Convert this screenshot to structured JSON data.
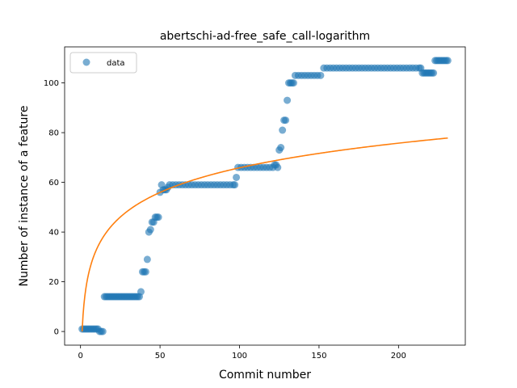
{
  "chart_data": {
    "type": "scatter",
    "title": "abertschi-ad-free_safe_call-logarithm",
    "xlabel": "Commit number",
    "ylabel": "Number of instance of a feature",
    "xlim": [
      -10,
      242
    ],
    "ylim": [
      -5.5,
      114.5
    ],
    "xticks": [
      0,
      50,
      100,
      150,
      200
    ],
    "yticks": [
      0,
      20,
      40,
      60,
      80,
      100
    ],
    "legend": {
      "position": "upper-left",
      "entries": [
        {
          "label": "data",
          "marker": "circle",
          "color": "#1f77b4"
        }
      ]
    },
    "grid": false,
    "series": [
      {
        "name": "data",
        "kind": "scatter",
        "color": "#1f77b4",
        "opacity": 0.6,
        "points": [
          [
            1,
            1
          ],
          [
            2,
            1
          ],
          [
            3,
            1
          ],
          [
            4,
            1
          ],
          [
            5,
            1
          ],
          [
            6,
            1
          ],
          [
            7,
            1
          ],
          [
            8,
            1
          ],
          [
            9,
            1
          ],
          [
            10,
            1
          ],
          [
            11,
            1
          ],
          [
            12,
            0
          ],
          [
            13,
            0
          ],
          [
            14,
            0
          ],
          [
            15,
            14
          ],
          [
            16,
            14
          ],
          [
            17,
            14
          ],
          [
            18,
            14
          ],
          [
            19,
            14
          ],
          [
            20,
            14
          ],
          [
            21,
            14
          ],
          [
            22,
            14
          ],
          [
            23,
            14
          ],
          [
            24,
            14
          ],
          [
            25,
            14
          ],
          [
            26,
            14
          ],
          [
            27,
            14
          ],
          [
            28,
            14
          ],
          [
            29,
            14
          ],
          [
            30,
            14
          ],
          [
            31,
            14
          ],
          [
            32,
            14
          ],
          [
            33,
            14
          ],
          [
            34,
            14
          ],
          [
            35,
            14
          ],
          [
            36,
            14
          ],
          [
            37,
            14
          ],
          [
            38,
            16
          ],
          [
            39,
            24
          ],
          [
            40,
            24
          ],
          [
            41,
            24
          ],
          [
            42,
            29
          ],
          [
            43,
            40
          ],
          [
            44,
            41
          ],
          [
            45,
            44
          ],
          [
            46,
            44
          ],
          [
            47,
            46
          ],
          [
            48,
            46
          ],
          [
            49,
            46
          ],
          [
            50,
            56
          ],
          [
            51,
            59
          ],
          [
            52,
            57
          ],
          [
            53,
            57
          ],
          [
            54,
            57
          ],
          [
            55,
            58
          ],
          [
            56,
            59
          ],
          [
            58,
            59
          ],
          [
            60,
            59
          ],
          [
            62,
            59
          ],
          [
            64,
            59
          ],
          [
            66,
            59
          ],
          [
            68,
            59
          ],
          [
            70,
            59
          ],
          [
            72,
            59
          ],
          [
            74,
            59
          ],
          [
            76,
            59
          ],
          [
            78,
            59
          ],
          [
            80,
            59
          ],
          [
            82,
            59
          ],
          [
            84,
            59
          ],
          [
            86,
            59
          ],
          [
            88,
            59
          ],
          [
            90,
            59
          ],
          [
            92,
            59
          ],
          [
            94,
            59
          ],
          [
            96,
            59
          ],
          [
            97,
            59
          ],
          [
            98,
            62
          ],
          [
            99,
            66
          ],
          [
            101,
            66
          ],
          [
            103,
            66
          ],
          [
            105,
            66
          ],
          [
            107,
            66
          ],
          [
            109,
            66
          ],
          [
            111,
            66
          ],
          [
            113,
            66
          ],
          [
            115,
            66
          ],
          [
            117,
            66
          ],
          [
            119,
            66
          ],
          [
            121,
            66
          ],
          [
            122,
            67
          ],
          [
            123,
            67
          ],
          [
            124,
            66
          ],
          [
            125,
            73
          ],
          [
            126,
            74
          ],
          [
            127,
            81
          ],
          [
            128,
            85
          ],
          [
            129,
            85
          ],
          [
            130,
            93
          ],
          [
            131,
            100
          ],
          [
            132,
            100
          ],
          [
            133,
            100
          ],
          [
            134,
            100
          ],
          [
            135,
            103
          ],
          [
            137,
            103
          ],
          [
            139,
            103
          ],
          [
            141,
            103
          ],
          [
            143,
            103
          ],
          [
            145,
            103
          ],
          [
            147,
            103
          ],
          [
            149,
            103
          ],
          [
            151,
            103
          ],
          [
            153,
            106
          ],
          [
            155,
            106
          ],
          [
            157,
            106
          ],
          [
            159,
            106
          ],
          [
            161,
            106
          ],
          [
            163,
            106
          ],
          [
            165,
            106
          ],
          [
            167,
            106
          ],
          [
            169,
            106
          ],
          [
            171,
            106
          ],
          [
            173,
            106
          ],
          [
            175,
            106
          ],
          [
            177,
            106
          ],
          [
            179,
            106
          ],
          [
            181,
            106
          ],
          [
            183,
            106
          ],
          [
            185,
            106
          ],
          [
            187,
            106
          ],
          [
            189,
            106
          ],
          [
            191,
            106
          ],
          [
            193,
            106
          ],
          [
            195,
            106
          ],
          [
            197,
            106
          ],
          [
            199,
            106
          ],
          [
            201,
            106
          ],
          [
            203,
            106
          ],
          [
            205,
            106
          ],
          [
            207,
            106
          ],
          [
            209,
            106
          ],
          [
            211,
            106
          ],
          [
            213,
            106
          ],
          [
            214,
            106
          ],
          [
            215,
            104
          ],
          [
            216,
            104
          ],
          [
            217,
            104
          ],
          [
            218,
            104
          ],
          [
            219,
            104
          ],
          [
            220,
            104
          ],
          [
            221,
            104
          ],
          [
            222,
            104
          ],
          [
            223,
            109
          ],
          [
            224,
            109
          ],
          [
            225,
            109
          ],
          [
            226,
            109
          ],
          [
            227,
            109
          ],
          [
            228,
            109
          ],
          [
            229,
            109
          ],
          [
            230,
            109
          ],
          [
            231,
            109
          ]
        ]
      },
      {
        "name": "",
        "kind": "line",
        "color": "#ff7f0e",
        "function": "logarithm",
        "a": 14.3,
        "b": 13.6,
        "x_range": [
          1,
          231
        ]
      }
    ]
  }
}
